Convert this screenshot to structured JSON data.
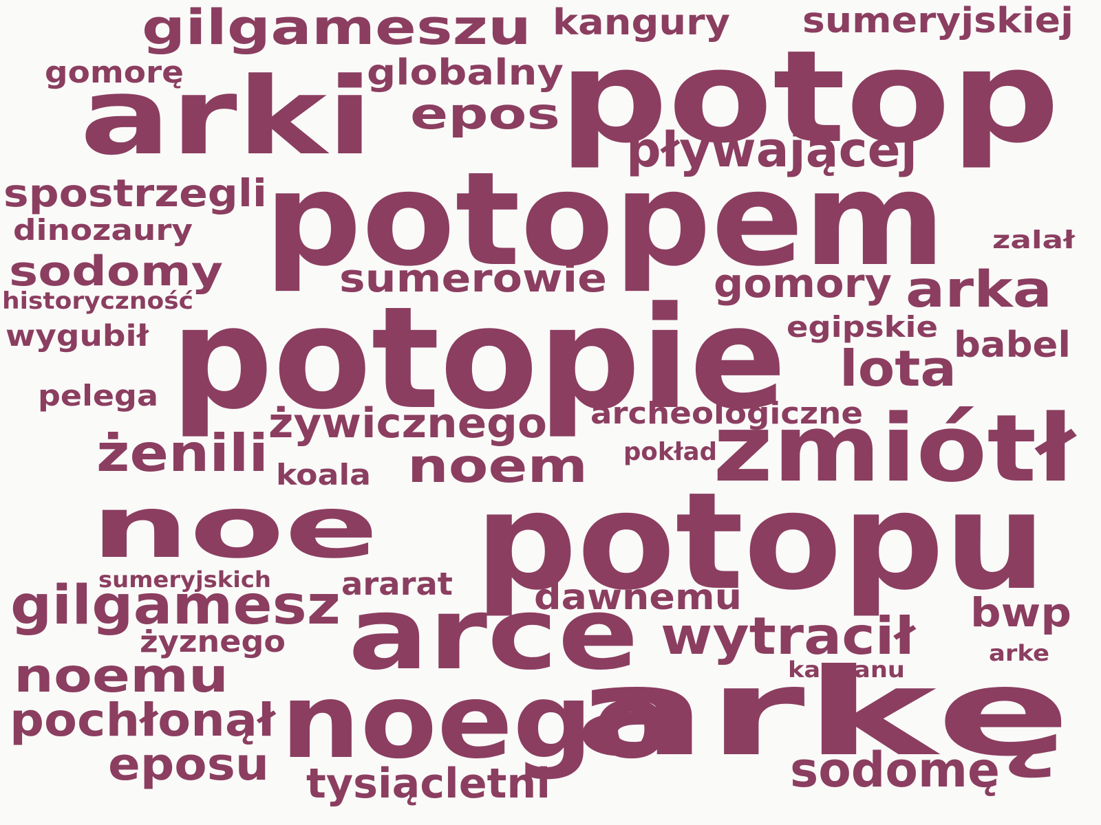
{
  "cloud": {
    "color": "#8b3e60",
    "background": "#fafaf8",
    "words": [
      "potop",
      "arki",
      "potopem",
      "potopie",
      "noe",
      "potopu",
      "noego",
      "arkę",
      "zmiótł",
      "arce",
      "gilgameszu",
      "kangury",
      "sumeryjskiej",
      "gomorę",
      "globalny",
      "epos",
      "pływającej",
      "spostrzegli",
      "dinozaury",
      "zalał",
      "sodomy",
      "sumerowie",
      "gomory",
      "arka",
      "historyczność",
      "wygubił",
      "egipskie",
      "babel",
      "lota",
      "pelega",
      "archeologiczne",
      "żywicznego",
      "żenili",
      "pokład",
      "noem",
      "koala",
      "sumeryjskich",
      "ararat",
      "gilgamesz",
      "dawnemu",
      "bwp",
      "wytracił",
      "żyznego",
      "arke",
      "noemu",
      "kanaanu",
      "pochłonął",
      "eposu",
      "sodomę",
      "tysiącletni"
    ]
  }
}
